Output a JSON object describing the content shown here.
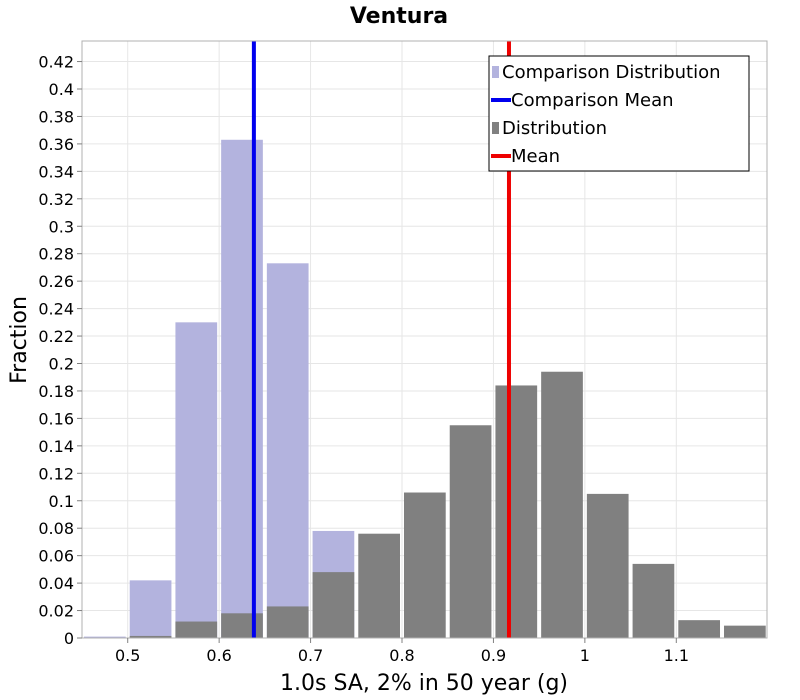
{
  "chart_data": {
    "type": "bar",
    "title": "Ventura",
    "xlabel": "1.0s SA, 2% in 50 year (g)",
    "ylabel": "Fraction",
    "xlim": [
      0.45,
      1.2
    ],
    "ylim": [
      0,
      0.435
    ],
    "bin_width": 0.05,
    "x_ticks": [
      {
        "value": 0.5,
        "label": "0.5"
      },
      {
        "value": 0.6,
        "label": "0.6"
      },
      {
        "value": 0.7,
        "label": "0.7"
      },
      {
        "value": 0.8,
        "label": "0.8"
      },
      {
        "value": 0.9,
        "label": "0.9"
      },
      {
        "value": 1.0,
        "label": "1"
      },
      {
        "value": 1.1,
        "label": "1.1"
      }
    ],
    "y_ticks": [
      {
        "value": 0,
        "label": "0"
      },
      {
        "value": 0.02,
        "label": "0.02"
      },
      {
        "value": 0.04,
        "label": "0.04"
      },
      {
        "value": 0.06,
        "label": "0.06"
      },
      {
        "value": 0.08,
        "label": "0.08"
      },
      {
        "value": 0.1,
        "label": "0.1"
      },
      {
        "value": 0.12,
        "label": "0.12"
      },
      {
        "value": 0.14,
        "label": "0.14"
      },
      {
        "value": 0.16,
        "label": "0.16"
      },
      {
        "value": 0.18,
        "label": "0.18"
      },
      {
        "value": 0.2,
        "label": "0.2"
      },
      {
        "value": 0.22,
        "label": "0.22"
      },
      {
        "value": 0.24,
        "label": "0.24"
      },
      {
        "value": 0.26,
        "label": "0.26"
      },
      {
        "value": 0.28,
        "label": "0.28"
      },
      {
        "value": 0.3,
        "label": "0.3"
      },
      {
        "value": 0.32,
        "label": "0.32"
      },
      {
        "value": 0.34,
        "label": "0.34"
      },
      {
        "value": 0.36,
        "label": "0.36"
      },
      {
        "value": 0.38,
        "label": "0.38"
      },
      {
        "value": 0.4,
        "label": "0.4"
      },
      {
        "value": 0.42,
        "label": "0.42"
      }
    ],
    "grid": true,
    "legend_position": "top-right",
    "series": [
      {
        "name": "Comparison Distribution",
        "kind": "histogram",
        "color": "#b3b3de",
        "x": [
          0.475,
          0.525,
          0.575,
          0.625,
          0.675,
          0.725
        ],
        "values": [
          0.001,
          0.042,
          0.23,
          0.363,
          0.273,
          0.078
        ]
      },
      {
        "name": "Distribution",
        "kind": "histogram",
        "color": "#808080",
        "x": [
          0.525,
          0.575,
          0.625,
          0.675,
          0.725,
          0.775,
          0.825,
          0.875,
          0.925,
          0.975,
          1.025,
          1.075,
          1.125,
          1.175
        ],
        "values": [
          0.0015,
          0.012,
          0.018,
          0.023,
          0.048,
          0.076,
          0.106,
          0.155,
          0.184,
          0.194,
          0.105,
          0.054,
          0.013,
          0.009
        ]
      },
      {
        "name": "Comparison Mean",
        "kind": "vline",
        "color": "#0000ee",
        "x": 0.638
      },
      {
        "name": "Mean",
        "kind": "vline",
        "color": "#ee0000",
        "x": 0.917
      }
    ],
    "legend": [
      {
        "label": "Comparison Distribution",
        "symbol": "square",
        "color": "#b3b3de"
      },
      {
        "label": "Comparison Mean",
        "symbol": "line",
        "color": "#0000ee"
      },
      {
        "label": "Distribution",
        "symbol": "square",
        "color": "#808080"
      },
      {
        "label": "Mean",
        "symbol": "line",
        "color": "#ee0000"
      }
    ]
  }
}
